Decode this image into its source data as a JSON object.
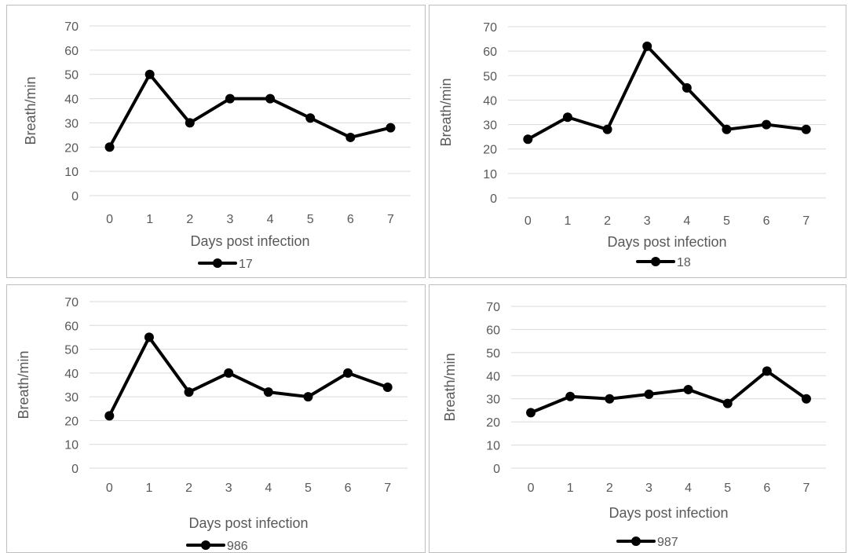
{
  "chart_data": [
    {
      "type": "line",
      "x": [
        0,
        1,
        2,
        3,
        4,
        5,
        6,
        7
      ],
      "series": [
        {
          "name": "17",
          "values": [
            20,
            50,
            30,
            40,
            40,
            32,
            24,
            28
          ]
        }
      ],
      "xlabel": "Days post infection",
      "ylabel": "Breath/min",
      "ylim": [
        0,
        70
      ],
      "yticks": [
        0,
        10,
        20,
        30,
        40,
        50,
        60,
        70
      ],
      "grid": true,
      "legend": "bottom",
      "color": "#000000"
    },
    {
      "type": "line",
      "x": [
        0,
        1,
        2,
        3,
        4,
        5,
        6,
        7
      ],
      "series": [
        {
          "name": "18",
          "values": [
            24,
            33,
            28,
            62,
            45,
            28,
            30,
            28
          ]
        }
      ],
      "xlabel": "Days post infection",
      "ylabel": "Breath/min",
      "ylim": [
        0,
        70
      ],
      "yticks": [
        0,
        10,
        20,
        30,
        40,
        50,
        60,
        70
      ],
      "grid": true,
      "legend": "bottom",
      "color": "#000000"
    },
    {
      "type": "line",
      "x": [
        0,
        1,
        2,
        3,
        4,
        5,
        6,
        7
      ],
      "series": [
        {
          "name": "986",
          "values": [
            22,
            55,
            32,
            40,
            32,
            30,
            40,
            34
          ]
        }
      ],
      "xlabel": "Days post infection",
      "ylabel": "Breath/min",
      "ylim": [
        0,
        70
      ],
      "yticks": [
        0,
        10,
        20,
        30,
        40,
        50,
        60,
        70
      ],
      "grid": true,
      "legend": "bottom",
      "color": "#000000"
    },
    {
      "type": "line",
      "x": [
        0,
        1,
        2,
        3,
        4,
        5,
        6,
        7
      ],
      "series": [
        {
          "name": "987",
          "values": [
            24,
            31,
            30,
            32,
            34,
            28,
            42,
            30
          ]
        }
      ],
      "xlabel": "Days post infection",
      "ylabel": "Breath/min",
      "ylim": [
        0,
        70
      ],
      "yticks": [
        0,
        10,
        20,
        30,
        40,
        50,
        60,
        70
      ],
      "grid": true,
      "legend": "bottom",
      "color": "#000000"
    }
  ]
}
